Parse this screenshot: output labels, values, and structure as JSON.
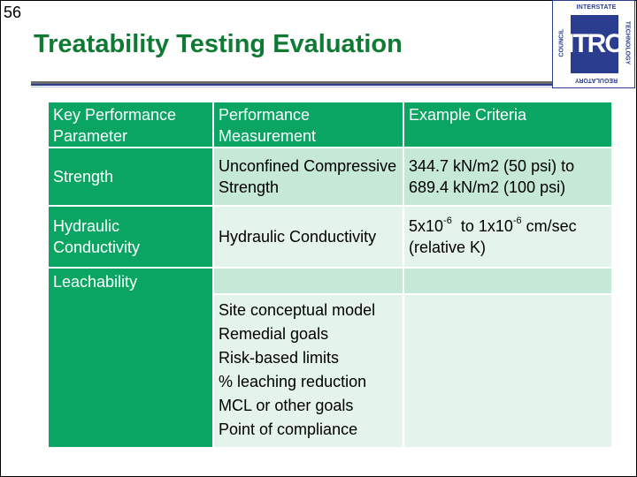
{
  "slide": {
    "number": "56",
    "title": "Treatability Testing Evaluation"
  },
  "logo": {
    "name": "ITRC",
    "top_text": "INTERSTATE",
    "right_text": "TECHNOLOGY",
    "bottom_text": "REGULATORY",
    "left_text": "COUNCIL"
  },
  "table": {
    "headers": [
      "Key Performance Parameter",
      "Performance Measurement",
      "Example Criteria"
    ],
    "strength": {
      "parameter": "Strength",
      "measurement": "Unconfined Compressive Strength",
      "criteria": "344.7 kN/m2  (50 psi) to 689.4 kN/m2 (100 psi)"
    },
    "hydraulic": {
      "parameter": "Hydraulic Conductivity",
      "measurement": "Hydraulic Conductivity",
      "criteria_a": "5x10",
      "criteria_a_exp": "-6",
      "criteria_b": "  to 1x10",
      "criteria_b_exp": "-6",
      "criteria_c": " cm/sec",
      "criteria_d": "(relative K)"
    },
    "leachability": {
      "parameter": "Leachability",
      "measurements": [
        "Site conceptual model",
        "Remedial goals",
        "Risk-based limits",
        "% leaching reduction",
        "MCL or other goals",
        "Point of compliance"
      ]
    }
  },
  "colors": {
    "title_green": "#0f7a33",
    "header_green": "#0aa563",
    "row_mid": "#c6e8d6",
    "row_light": "#e4f4eb",
    "logo_blue": "#2a3d8f"
  }
}
